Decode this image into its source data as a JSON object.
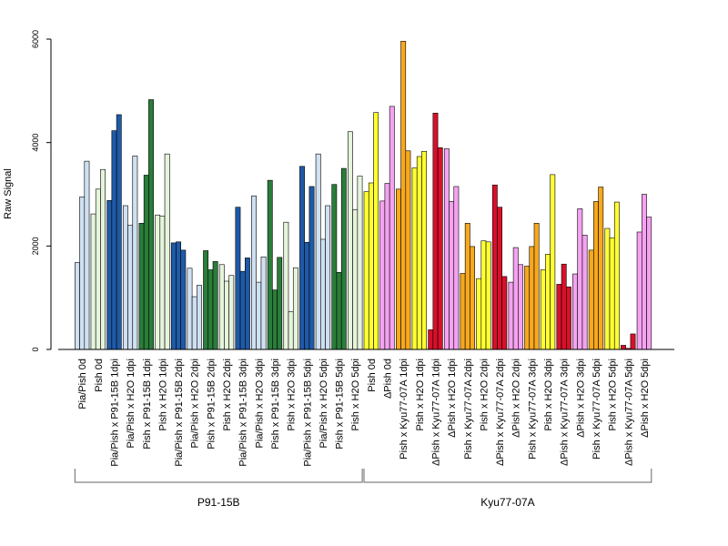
{
  "chart_data": {
    "type": "bar",
    "ylabel": "Raw Signal",
    "ylim": [
      0,
      6000
    ],
    "yticks": [
      0,
      2000,
      4000,
      6000
    ],
    "grid": false,
    "colors": {
      "light_blue": "#cfe0f1",
      "dark_blue": "#1f5aa7",
      "light_green": "#e6f4dc",
      "dark_green": "#2a7d3a",
      "yellow": "#ffff33",
      "pink": "#f5a2f0",
      "orange": "#f7a81c",
      "red": "#d8102a"
    },
    "groups": [
      {
        "name": "P91-15B",
        "categories": [
          {
            "label": "Pia/Pish 0d",
            "values": [
              1680,
              2950,
              3640
            ],
            "color": "light_blue"
          },
          {
            "label": "Pish 0d",
            "values": [
              2620,
              3100,
              3480
            ],
            "color": "light_green"
          },
          {
            "label": "Pia/Pish x P91-15B 1dpi",
            "values": [
              2880,
              4230,
              4540
            ],
            "color": "dark_blue"
          },
          {
            "label": "Pia/Pish x H2O 1dpi",
            "values": [
              2780,
              2400,
              3740
            ],
            "color": "light_blue"
          },
          {
            "label": "Pish x P91-15B 1dpi",
            "values": [
              2440,
              3370,
              4830
            ],
            "color": "dark_green"
          },
          {
            "label": "Pish x H2O 1dpi",
            "values": [
              2600,
              2580,
              3780
            ],
            "color": "light_green"
          },
          {
            "label": "Pia/Pish x P91-15B 2dpi",
            "values": [
              2060,
              2080,
              1920
            ],
            "color": "dark_blue"
          },
          {
            "label": "Pia/Pish x H2O 2dpi",
            "values": [
              1570,
              1020,
              1240
            ],
            "color": "light_blue"
          },
          {
            "label": "Pish x P91-15B 2dpi",
            "values": [
              1910,
              1540,
              1700
            ],
            "color": "dark_green"
          },
          {
            "label": "Pish x H2O 2dpi",
            "values": [
              1640,
              1320,
              1430
            ],
            "color": "light_green"
          },
          {
            "label": "Pia/Pish x P91-15B 3dpi",
            "values": [
              2750,
              1510,
              1770
            ],
            "color": "dark_blue"
          },
          {
            "label": "Pia/Pish x H2O 3dpi",
            "values": [
              2970,
              1300,
              1790
            ],
            "color": "light_blue"
          },
          {
            "label": "Pish x P91-15B 3dpi",
            "values": [
              3270,
              1150,
              1780
            ],
            "color": "dark_green"
          },
          {
            "label": "Pish x H2O 3dpi",
            "values": [
              2460,
              730,
              1580
            ],
            "color": "light_green"
          },
          {
            "label": "Pia/Pish x P91-15B 5dpi",
            "values": [
              3540,
              2070,
              3150
            ],
            "color": "dark_blue"
          },
          {
            "label": "Pia/Pish x H2O 5dpi",
            "values": [
              3780,
              2130,
              2780
            ],
            "color": "light_blue"
          },
          {
            "label": "Pish x P91-15B 5dpi",
            "values": [
              3190,
              1490,
              3500
            ],
            "color": "dark_green"
          },
          {
            "label": "Pish x H2O 5dpi",
            "values": [
              4210,
              2700,
              3350
            ],
            "color": "light_green"
          }
        ]
      },
      {
        "name": "Kyu77-07A",
        "categories": [
          {
            "label": "Pish 0d",
            "values": [
              3050,
              3220,
              4580
            ],
            "color": "yellow"
          },
          {
            "label": "ΔPish 0d",
            "values": [
              2870,
              3210,
              4700
            ],
            "color": "pink"
          },
          {
            "label": "Pish x Kyu77-07A 1dpi",
            "values": [
              3100,
              5960,
              3840
            ],
            "color": "orange"
          },
          {
            "label": "Pish x H2O 1dpi",
            "values": [
              3510,
              3730,
              3830
            ],
            "color": "yellow"
          },
          {
            "label": "ΔPish x Kyu77-07A 1dpi",
            "values": [
              380,
              4570,
              3900
            ],
            "color": "red"
          },
          {
            "label": "ΔPish x H2O 1dpi",
            "values": [
              3880,
              2860,
              3150
            ],
            "color": "pink"
          },
          {
            "label": "Pish x Kyu77-07A 2dpi",
            "values": [
              1470,
              2440,
              1990
            ],
            "color": "orange"
          },
          {
            "label": "Pish x H2O 2dpi",
            "values": [
              1370,
              2100,
              2080
            ],
            "color": "yellow"
          },
          {
            "label": "ΔPish x Kyu77-07A 2dpi",
            "values": [
              3180,
              2750,
              1410
            ],
            "color": "red"
          },
          {
            "label": "ΔPish x H2O 2dpi",
            "values": [
              1300,
              1970,
              1640
            ],
            "color": "pink"
          },
          {
            "label": "Pish x Kyu77-07A 3dpi",
            "values": [
              1610,
              1990,
              2440
            ],
            "color": "orange"
          },
          {
            "label": "Pish x H2O 3dpi",
            "values": [
              1540,
              1840,
              3380
            ],
            "color": "yellow"
          },
          {
            "label": "ΔPish x Kyu77-07A 3dpi",
            "values": [
              1260,
              1650,
              1210
            ],
            "color": "red"
          },
          {
            "label": "ΔPish x H2O 3dpi",
            "values": [
              1460,
              2720,
              2210
            ],
            "color": "pink"
          },
          {
            "label": "Pish x Kyu77-07A 5dpi",
            "values": [
              1920,
              2860,
              3140
            ],
            "color": "orange"
          },
          {
            "label": "Pish x H2O 5dpi",
            "values": [
              2340,
              2160,
              2850
            ],
            "color": "yellow"
          },
          {
            "label": "ΔPish x Kyu77-07A 5dpi",
            "values": [
              80,
              20,
              300
            ],
            "color": "red"
          },
          {
            "label": "ΔPish x H2O 5dpi",
            "values": [
              2270,
              3000,
              2560
            ],
            "color": "pink"
          }
        ]
      }
    ]
  }
}
